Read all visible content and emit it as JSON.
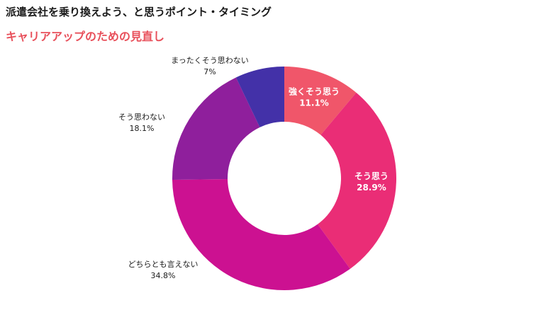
{
  "header": {
    "title": "派遣会社を乗り換えよう、と思うポイント・タイミング",
    "subtitle": "キャリアアップのための見直し"
  },
  "chart_data": {
    "type": "pie",
    "variant": "donut",
    "title": "派遣会社を乗り換えよう、と思うポイント・タイミング",
    "subtitle": "キャリアアップのための見直し",
    "slices": [
      {
        "label": "強くそう思う",
        "value": 11.1,
        "display": "11.1%",
        "color": "#f0566a",
        "label_position": "inside"
      },
      {
        "label": "そう思う",
        "value": 28.9,
        "display": "28.9%",
        "color": "#ea2d76",
        "label_position": "inside"
      },
      {
        "label": "どちらとも言えない",
        "value": 34.8,
        "display": "34.8%",
        "color": "#cc1191",
        "label_position": "outside"
      },
      {
        "label": "そう思わない",
        "value": 18.1,
        "display": "18.1%",
        "color": "#8f1f9c",
        "label_position": "outside"
      },
      {
        "label": "まったくそう思わない",
        "value": 7.1,
        "display": "7%",
        "color": "#4331a8",
        "label_position": "outside"
      }
    ]
  }
}
